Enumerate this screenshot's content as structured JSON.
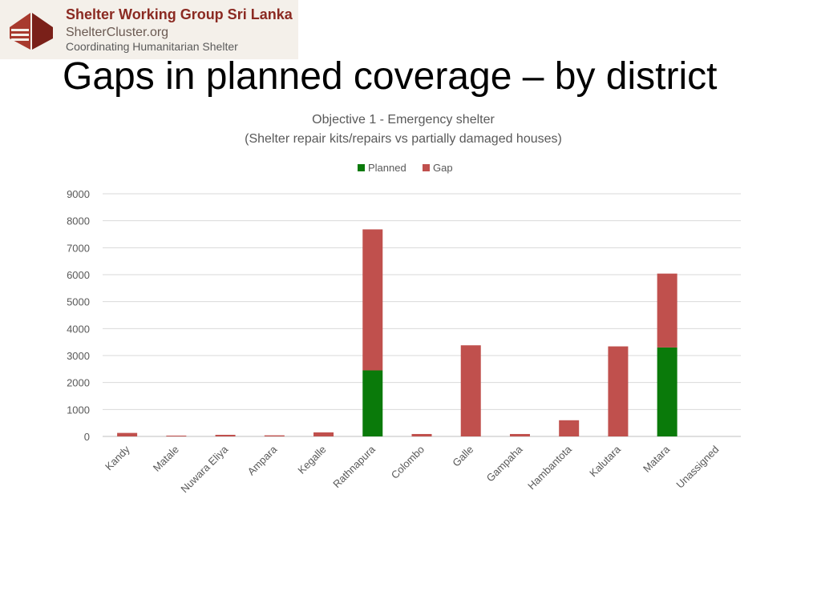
{
  "logo": {
    "line1": "Shelter Working Group Sri Lanka",
    "line2": "ShelterCluster.org",
    "line3": "Coordinating Humanitarian Shelter"
  },
  "slide_title": "Gaps in planned coverage – by district",
  "chart_data": {
    "type": "bar",
    "stacked": true,
    "title": "Objective 1 - Emergency shelter",
    "subtitle": "(Shelter repair kits/repairs vs partially damaged houses)",
    "categories": [
      "Kandy",
      "Matale",
      "Nuwara Eliya",
      "Ampara",
      "Kegalle",
      "Rathnapura",
      "Colombo",
      "Galle",
      "Gampaha",
      "Hambantota",
      "Kalutara",
      "Matara",
      "Unassigned"
    ],
    "series": [
      {
        "name": "Planned",
        "color": "#0a7a0a",
        "values": [
          0,
          0,
          0,
          0,
          0,
          2450,
          0,
          0,
          0,
          0,
          0,
          3300,
          0
        ]
      },
      {
        "name": "Gap",
        "color": "#c0504d",
        "values": [
          130,
          30,
          60,
          40,
          150,
          5230,
          90,
          3380,
          90,
          600,
          3340,
          2740,
          0
        ]
      }
    ],
    "ylim": [
      0,
      9000
    ],
    "yticks": [
      0,
      1000,
      2000,
      3000,
      4000,
      5000,
      6000,
      7000,
      8000,
      9000
    ],
    "legend_position": "top",
    "grid": true
  }
}
